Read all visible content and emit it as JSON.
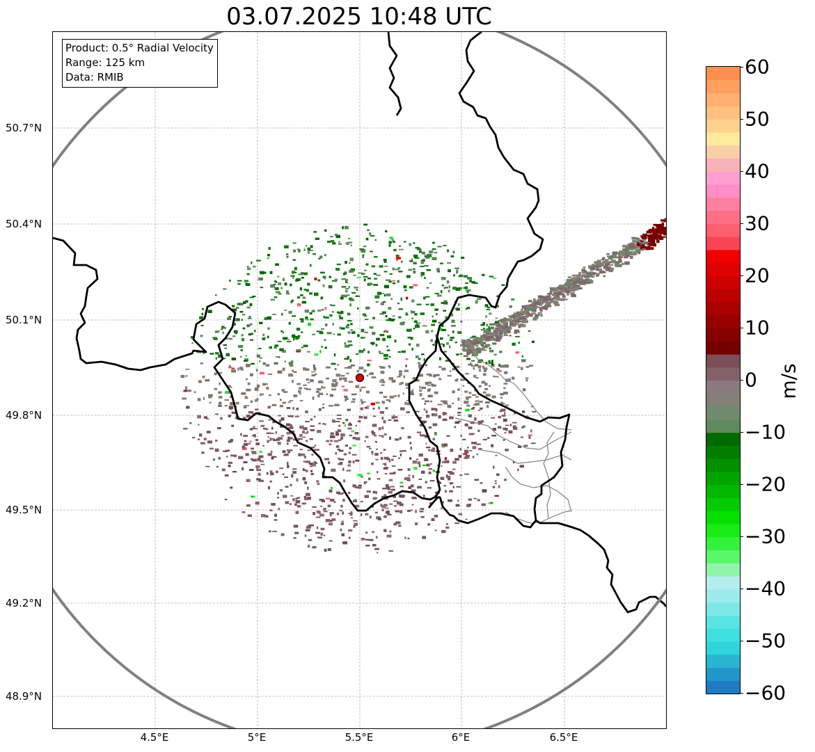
{
  "title": "03.07.2025 10:48 UTC",
  "info": {
    "product": "Product: 0.5° Radial Velocity",
    "range": "Range: 125 km",
    "data": "Data: RMIB"
  },
  "axes": {
    "lat_ticks": [
      "50.7°N",
      "50.4°N",
      "50.1°N",
      "49.8°N",
      "49.5°N",
      "49.2°N",
      "48.9°N"
    ],
    "lon_ticks": [
      "4.5°E",
      "5°E",
      "5.5°E",
      "6°E",
      "6.5°E"
    ]
  },
  "colorbar": {
    "label": "m/s",
    "ticks": [
      "60",
      "50",
      "40",
      "30",
      "20",
      "10",
      "0",
      "−10",
      "−20",
      "−30",
      "−40",
      "−50",
      "−60"
    ],
    "vmin": -60,
    "vmax": 60,
    "colors": [
      "#1f7ac4",
      "#2196c9",
      "#29b4d2",
      "#2ed6dc",
      "#3ee0e0",
      "#5ae4e4",
      "#7ee8e8",
      "#9deaea",
      "#b4eeee",
      "#8ff5a8",
      "#5af76b",
      "#33f23b",
      "#18ec15",
      "#06e000",
      "#04cc00",
      "#03b800",
      "#02a400",
      "#029000",
      "#017e00",
      "#006a00",
      "#5e8a5e",
      "#6f8a6c",
      "#858078",
      "#8a7a80",
      "#84606a",
      "#7c4e56",
      "#740000",
      "#860000",
      "#980000",
      "#aa0000",
      "#bc0000",
      "#ce0000",
      "#e00000",
      "#f20000",
      "#fa4455",
      "#fb5f70",
      "#fc6f85",
      "#fd7fa0",
      "#ff8dc8",
      "#ff9fd0",
      "#f7b1b8",
      "#f9cfa8",
      "#feea9a",
      "#ffd190",
      "#ffc080",
      "#ffb070",
      "#ffa060",
      "#ff9050"
    ]
  },
  "radar_site": {
    "lon": 5.505,
    "lat": 49.914
  },
  "map": {
    "lon_min": 4.0,
    "lon_max": 7.0,
    "lat_min": 48.8,
    "lat_max": 50.98,
    "range_km": 125
  }
}
